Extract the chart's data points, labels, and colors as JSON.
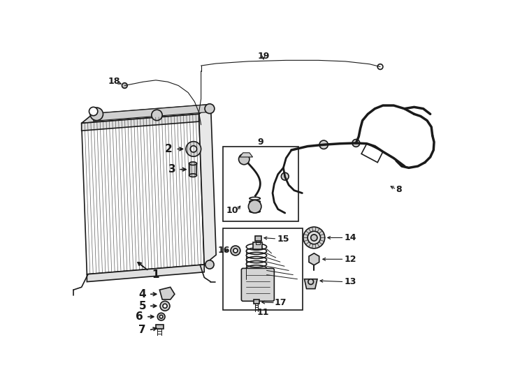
{
  "background_color": "#ffffff",
  "line_color": "#1a1a1a",
  "fig_width": 7.34,
  "fig_height": 5.4,
  "dpi": 100,
  "xlim": [
    0,
    734
  ],
  "ylim": [
    0,
    540
  ]
}
